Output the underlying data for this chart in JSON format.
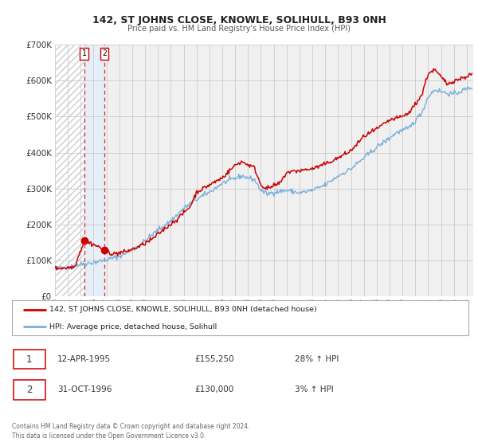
{
  "title": "142, ST JOHNS CLOSE, KNOWLE, SOLIHULL, B93 0NH",
  "subtitle": "Price paid vs. HM Land Registry's House Price Index (HPI)",
  "bg_color": "#ffffff",
  "plot_bg_color": "#f0f0f0",
  "grid_color": "#cccccc",
  "red_line_color": "#cc0000",
  "blue_line_color": "#7aafdb",
  "sale1_date_num": 1995.28,
  "sale1_price": 155250,
  "sale2_date_num": 1996.83,
  "sale2_price": 130000,
  "xmin": 1993.0,
  "xmax": 2025.5,
  "ymin": 0,
  "ymax": 700000,
  "yticks": [
    0,
    100000,
    200000,
    300000,
    400000,
    500000,
    600000,
    700000
  ],
  "ytick_labels": [
    "£0",
    "£100K",
    "£200K",
    "£300K",
    "£400K",
    "£500K",
    "£600K",
    "£700K"
  ],
  "legend_line1": "142, ST JOHNS CLOSE, KNOWLE, SOLIHULL, B93 0NH (detached house)",
  "legend_line2": "HPI: Average price, detached house, Solihull",
  "table_row1_num": "1",
  "table_row1_date": "12-APR-1995",
  "table_row1_price": "£155,250",
  "table_row1_hpi": "28% ↑ HPI",
  "table_row2_num": "2",
  "table_row2_date": "31-OCT-1996",
  "table_row2_price": "£130,000",
  "table_row2_hpi": "3% ↑ HPI",
  "footer": "Contains HM Land Registry data © Crown copyright and database right 2024.\nThis data is licensed under the Open Government Licence v3.0."
}
